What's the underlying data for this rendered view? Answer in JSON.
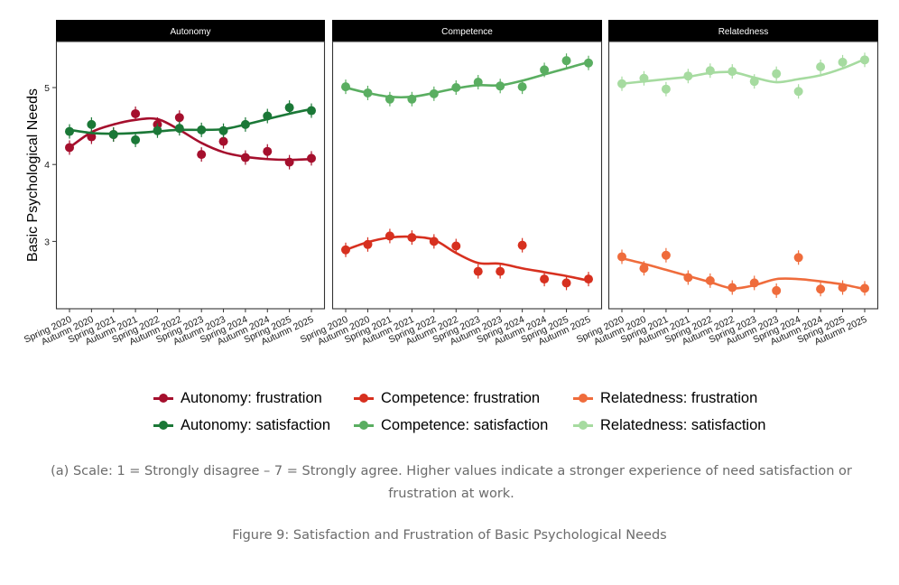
{
  "chart_data": {
    "type": "line",
    "ylabel": "Basic Psychological Needs",
    "xlabel": "",
    "ylim": [
      2.15,
      5.6
    ],
    "yticks": [
      3,
      4,
      5
    ],
    "categories": [
      "Spring 2020",
      "Autumn 2020",
      "Spring 2021",
      "Autumn 2021",
      "Spring 2022",
      "Autumn 2022",
      "Spring 2023",
      "Autumn 2023",
      "Spring 2024",
      "Autumn 2024",
      "Spring 2025",
      "Autumn 2025"
    ],
    "panels": [
      {
        "title": "Autonomy",
        "series": [
          {
            "name": "Autonomy: frustration",
            "color": "#A50F2D",
            "values": [
              4.22,
              4.36,
              4.39,
              4.66,
              4.52,
              4.61,
              4.13,
              4.3,
              4.09,
              4.17,
              4.03,
              4.08
            ],
            "smooth": [
              4.22,
              4.42,
              4.52,
              4.58,
              4.59,
              4.45,
              4.28,
              4.16,
              4.1,
              4.07,
              4.06,
              4.07
            ]
          },
          {
            "name": "Autonomy: satisfaction",
            "color": "#1B7837",
            "values": [
              4.43,
              4.52,
              4.39,
              4.32,
              4.44,
              4.47,
              4.45,
              4.44,
              4.52,
              4.63,
              4.74,
              4.7
            ],
            "smooth": [
              4.45,
              4.41,
              4.4,
              4.41,
              4.43,
              4.45,
              4.45,
              4.46,
              4.52,
              4.59,
              4.66,
              4.72
            ]
          }
        ]
      },
      {
        "title": "Competence",
        "series": [
          {
            "name": "Competence: frustration",
            "color": "#D7301F",
            "values": [
              2.89,
              2.96,
              3.07,
              3.05,
              3.0,
              2.94,
              2.61,
              2.61,
              2.95,
              2.51,
              2.46,
              2.51
            ],
            "smooth": [
              2.89,
              2.99,
              3.05,
              3.06,
              3.02,
              2.85,
              2.72,
              2.71,
              2.65,
              2.6,
              2.55,
              2.49
            ]
          },
          {
            "name": "Competence: satisfaction",
            "color": "#5AAE61",
            "values": [
              5.01,
              4.93,
              4.85,
              4.85,
              4.92,
              5.0,
              5.07,
              5.02,
              5.01,
              5.23,
              5.35,
              5.32
            ],
            "smooth": [
              5.0,
              4.93,
              4.88,
              4.88,
              4.93,
              4.99,
              5.03,
              5.03,
              5.09,
              5.17,
              5.25,
              5.33
            ]
          }
        ]
      },
      {
        "title": "Relatedness",
        "series": [
          {
            "name": "Relatedness: frustration",
            "color": "#EF6C3C",
            "values": [
              2.8,
              2.65,
              2.82,
              2.53,
              2.49,
              2.4,
              2.46,
              2.36,
              2.79,
              2.38,
              2.4,
              2.39
            ],
            "smooth": [
              2.78,
              2.71,
              2.63,
              2.55,
              2.47,
              2.39,
              2.43,
              2.51,
              2.51,
              2.48,
              2.44,
              2.38
            ]
          },
          {
            "name": "Relatedness: satisfaction",
            "color": "#A6DBA0",
            "values": [
              5.05,
              5.12,
              4.98,
              5.15,
              5.22,
              5.21,
              5.08,
              5.18,
              4.95,
              5.27,
              5.33,
              5.36
            ],
            "smooth": [
              5.05,
              5.08,
              5.11,
              5.14,
              5.19,
              5.2,
              5.13,
              5.07,
              5.11,
              5.16,
              5.25,
              5.37
            ]
          }
        ]
      }
    ],
    "legend": {
      "position": "bottom",
      "rows": [
        [
          {
            "label": "Autonomy: frustration",
            "color": "#A50F2D"
          },
          {
            "label": "Competence: frustration",
            "color": "#D7301F"
          },
          {
            "label": "Relatedness: frustration",
            "color": "#EF6C3C"
          }
        ],
        [
          {
            "label": "Autonomy: satisfaction",
            "color": "#1B7837"
          },
          {
            "label": "Competence: satisfaction",
            "color": "#5AAE61"
          },
          {
            "label": "Relatedness: satisfaction",
            "color": "#A6DBA0"
          }
        ]
      ]
    }
  },
  "note": "(a) Scale: 1 = Strongly disagree – 7 = Strongly agree. Higher values indicate a stronger experience of need satisfaction or frustration at work.",
  "caption": "Figure 9: Satisfaction and Frustration of Basic Psychological Needs"
}
